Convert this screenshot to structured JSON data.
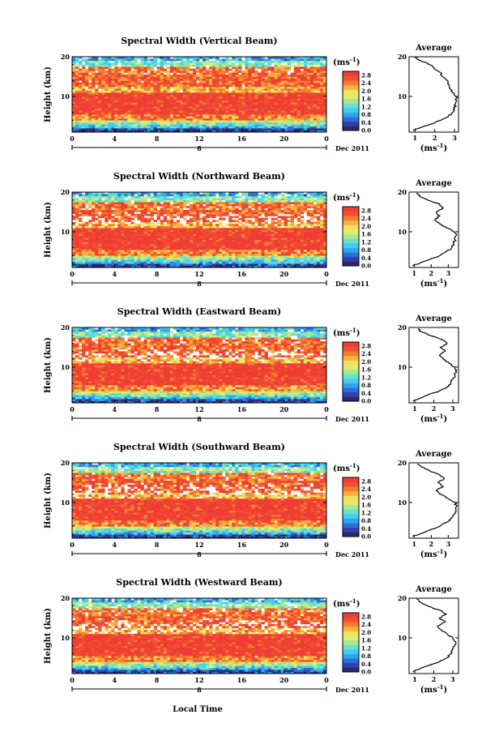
{
  "figure": {
    "xlabel": "Local Time",
    "date_label": "Dec 2011",
    "day_marker": "8",
    "colorbar_unit_base": "(ms",
    "colorbar_unit_exp": "-1",
    "colorbar_unit_close": ")",
    "colorbar_ticks": [
      "2.8",
      "2.4",
      "2.0",
      "1.6",
      "1.2",
      "0.8",
      "0.4",
      "0.0"
    ],
    "colorbar_range": [
      0,
      3.0
    ],
    "colormap": [
      "#2a2a6a",
      "#3040b0",
      "#2f6ed8",
      "#2aa8ee",
      "#3fd0f0",
      "#6fe0c8",
      "#aae890",
      "#dcee70",
      "#f6e05a",
      "#f8b040",
      "#f47c30",
      "#f05030",
      "#f03c34"
    ],
    "avg_title": "Average",
    "avg_xlabel_base": "(ms",
    "avg_xlabel_exp": "-1",
    "avg_xlabel_close": ")"
  },
  "chart_data": [
    {
      "type": "heatmap",
      "title": "Spectral Width (Vertical Beam)",
      "ylabel": "Height (km)",
      "xlabel": "",
      "x_ticks": [
        "0",
        "4",
        "8",
        "12",
        "16",
        "20",
        "0"
      ],
      "xlim": [
        0,
        24
      ],
      "y_ticks": [
        "20",
        "10"
      ],
      "ylim": [
        1,
        20
      ],
      "z_unit": "ms^-1",
      "zlim": [
        0,
        3.0
      ],
      "profile": {
        "title": "Average",
        "x_ticks": [
          "1",
          "2",
          "3"
        ],
        "xlim": [
          0.7,
          3.2
        ],
        "y_ticks": [
          "20",
          "10"
        ],
        "height_km": [
          1.5,
          2,
          3,
          4,
          5,
          6,
          7,
          8,
          9,
          10,
          11,
          12,
          13,
          14,
          15,
          16,
          17,
          18,
          19,
          19.8
        ],
        "mean_width_ms": [
          0.9,
          1.2,
          1.8,
          2.3,
          2.7,
          2.9,
          3.0,
          3.05,
          3.1,
          3.05,
          2.9,
          2.75,
          2.7,
          2.65,
          2.4,
          2.3,
          2.0,
          1.75,
          1.3,
          1.0
        ]
      }
    },
    {
      "type": "heatmap",
      "title": "Spectral Width (Northward Beam)",
      "ylabel": "Height (km)",
      "xlabel": "",
      "x_ticks": [
        "0",
        "4",
        "8",
        "12",
        "16",
        "20",
        "0"
      ],
      "xlim": [
        0,
        24
      ],
      "y_ticks": [
        "20",
        "10"
      ],
      "ylim": [
        1,
        20
      ],
      "z_unit": "ms^-1",
      "zlim": [
        0,
        3.0
      ],
      "profile": {
        "title": "Average",
        "x_ticks": [
          "1",
          "2",
          "3"
        ],
        "xlim": [
          0.7,
          3.6
        ],
        "y_ticks": [
          "20",
          "10"
        ],
        "height_km": [
          1.5,
          2,
          3,
          4,
          5,
          6,
          7,
          8,
          9,
          10,
          11,
          12,
          13,
          14,
          15,
          16,
          17,
          18,
          19,
          19.8
        ],
        "mean_width_ms": [
          0.9,
          1.3,
          1.9,
          2.5,
          2.9,
          3.2,
          3.3,
          3.4,
          3.45,
          3.35,
          2.9,
          2.5,
          2.2,
          2.5,
          2.3,
          2.7,
          2.5,
          1.8,
          1.3,
          1.2
        ]
      }
    },
    {
      "type": "heatmap",
      "title": "Spectral Width (Eastward Beam)",
      "ylabel": "Height (km)",
      "xlabel": "",
      "x_ticks": [
        "0",
        "4",
        "8",
        "12",
        "16",
        "20",
        "0"
      ],
      "xlim": [
        0,
        24
      ],
      "y_ticks": [
        "20",
        "10"
      ],
      "ylim": [
        1,
        20
      ],
      "z_unit": "ms^-1",
      "zlim": [
        0,
        3.0
      ],
      "profile": {
        "title": "Average",
        "x_ticks": [
          "1",
          "2",
          "3"
        ],
        "xlim": [
          0.7,
          3.3
        ],
        "y_ticks": [
          "20",
          "10"
        ],
        "height_km": [
          1.5,
          2,
          3,
          4,
          5,
          6,
          7,
          8,
          9,
          10,
          11,
          12,
          13,
          14,
          15,
          16,
          17,
          18,
          19,
          19.8
        ],
        "mean_width_ms": [
          0.9,
          1.2,
          1.7,
          2.3,
          2.7,
          2.9,
          3.0,
          3.1,
          3.15,
          3.1,
          2.8,
          2.5,
          2.3,
          2.6,
          2.35,
          2.7,
          2.4,
          1.8,
          1.3,
          1.2
        ]
      }
    },
    {
      "type": "heatmap",
      "title": "Spectral Width (Southward Beam)",
      "ylabel": "Height (km)",
      "xlabel": "",
      "x_ticks": [
        "0",
        "4",
        "8",
        "12",
        "16",
        "20",
        "0"
      ],
      "xlim": [
        0,
        24
      ],
      "y_ticks": [
        "20",
        "10"
      ],
      "ylim": [
        1,
        20
      ],
      "z_unit": "ms^-1",
      "zlim": [
        0,
        3.0
      ],
      "profile": {
        "title": "Average",
        "x_ticks": [
          "1",
          "2",
          "3"
        ],
        "xlim": [
          0.7,
          3.6
        ],
        "y_ticks": [
          "20",
          "10"
        ],
        "height_km": [
          1.5,
          2,
          3,
          4,
          5,
          6,
          7,
          8,
          9,
          10,
          11,
          12,
          13,
          14,
          15,
          16,
          17,
          18,
          19,
          19.8
        ],
        "mean_width_ms": [
          0.9,
          1.3,
          1.9,
          2.5,
          2.9,
          3.2,
          3.35,
          3.45,
          3.5,
          3.4,
          3.0,
          2.6,
          2.3,
          2.7,
          2.4,
          2.75,
          2.5,
          1.9,
          1.4,
          1.2
        ]
      }
    },
    {
      "type": "heatmap",
      "title": "Spectral Width (Westward Beam)",
      "ylabel": "Height (km)",
      "xlabel": "Local Time",
      "x_ticks": [
        "0",
        "4",
        "8",
        "12",
        "16",
        "20",
        "0"
      ],
      "xlim": [
        0,
        24
      ],
      "y_ticks": [
        "20",
        "10"
      ],
      "ylim": [
        1,
        20
      ],
      "z_unit": "ms^-1",
      "zlim": [
        0,
        3.0
      ],
      "profile": {
        "title": "Average",
        "x_ticks": [
          "1",
          "2",
          "3"
        ],
        "xlim": [
          0.7,
          3.3
        ],
        "y_ticks": [
          "20",
          "10"
        ],
        "height_km": [
          1.5,
          2,
          3,
          4,
          5,
          6,
          7,
          8,
          9,
          10,
          11,
          12,
          13,
          14,
          15,
          16,
          17,
          18,
          19,
          19.8
        ],
        "mean_width_ms": [
          0.9,
          1.2,
          1.7,
          2.3,
          2.7,
          2.9,
          3.0,
          3.1,
          3.15,
          3.0,
          2.7,
          2.4,
          2.2,
          2.6,
          2.3,
          2.65,
          2.3,
          1.7,
          1.3,
          1.1
        ]
      }
    }
  ]
}
